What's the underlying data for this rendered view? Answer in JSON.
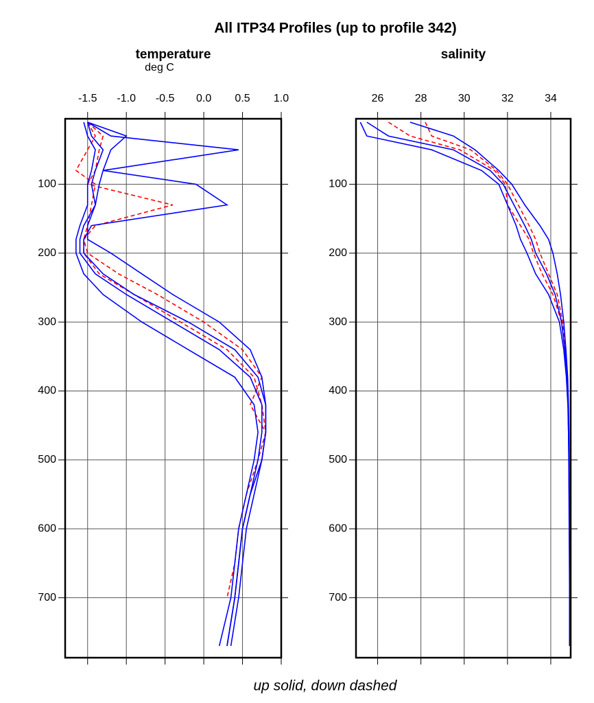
{
  "title": "All ITP34 Profiles (up to profile 342)",
  "footer": "up solid, down dashed",
  "chart_data": [
    {
      "type": "line",
      "title": "temperature",
      "subtitle": "deg C",
      "xlim": [
        -1.79,
        1.0
      ],
      "xticks": [
        -1.5,
        {
          "value": -1,
          "label": "-1.0"
        },
        -0.5,
        {
          "value": 0,
          "label": "0.0"
        },
        0.5,
        {
          "value": 1,
          "label": "1.0"
        }
      ],
      "ylim": [
        787,
        5
      ],
      "yticks": [
        100,
        200,
        300,
        400,
        500,
        600,
        700
      ],
      "grid": true,
      "y": [
        10,
        30,
        50,
        80,
        100,
        130,
        160,
        180,
        200,
        230,
        260,
        300,
        340,
        380,
        420,
        460,
        500,
        550,
        600,
        650,
        700,
        770
      ],
      "series": [
        {
          "color": "#ff0000",
          "dashed": true,
          "values": [
            -1.5,
            -1.4,
            -1.5,
            -1.65,
            -1.4,
            -1.45,
            -1.5,
            -1.55,
            -1.55,
            -1.35,
            -0.9,
            -0.3,
            0.3,
            0.65,
            0.75,
            0.8,
            0.7,
            0.55,
            0.45,
            0.4,
            0.3,
            null
          ]
        },
        {
          "color": "#ff0000",
          "dashed": true,
          "values": [
            -1.5,
            -1.3,
            -1.35,
            -1.4,
            -1.5,
            -0.4,
            -1.4,
            -1.55,
            -1.5,
            -1.1,
            -0.6,
            0.0,
            0.5,
            0.75,
            0.6,
            0.8,
            0.75,
            0.6,
            0.5,
            0.45,
            0.4,
            0.3
          ]
        },
        {
          "color": "#0000ff",
          "dashed": false,
          "values": [
            -1.5,
            -1.45,
            -1.3,
            -1.4,
            -1.45,
            -1.4,
            -1.55,
            -1.6,
            -1.6,
            -1.4,
            -1.0,
            -0.4,
            0.2,
            0.6,
            0.75,
            0.75,
            0.7,
            0.6,
            0.5,
            0.45,
            0.4,
            0.3
          ]
        },
        {
          "color": "#0000ff",
          "dashed": false,
          "values": [
            -1.5,
            -1.0,
            -1.2,
            -1.3,
            -1.35,
            -1.4,
            -1.5,
            -1.5,
            -1.2,
            -0.8,
            -0.4,
            0.2,
            0.6,
            0.75,
            0.8,
            0.8,
            0.75,
            0.65,
            0.55,
            0.5,
            0.45,
            0.35
          ]
        },
        {
          "color": "#0000ff",
          "dashed": false,
          "values": [
            -1.55,
            -1.5,
            -1.4,
            -1.45,
            -1.5,
            -1.5,
            -1.6,
            -1.65,
            -1.65,
            -1.55,
            -1.3,
            -0.8,
            -0.2,
            0.4,
            0.65,
            0.7,
            0.65,
            0.55,
            0.45,
            0.4,
            0.35,
            0.2
          ]
        },
        {
          "color": "#0000ff",
          "dashed": false,
          "values": [
            -1.5,
            -1.2,
            0.45,
            -1.3,
            -0.1,
            0.3,
            -1.45,
            -1.55,
            -1.55,
            -1.3,
            -0.9,
            -0.2,
            0.4,
            0.7,
            0.8,
            0.8,
            0.75,
            0.6,
            0.5,
            0.45,
            0.4,
            0.3
          ]
        }
      ]
    },
    {
      "type": "line",
      "title": "salinity",
      "xlim": [
        25,
        34.92
      ],
      "xticks": [
        26,
        28,
        30,
        32,
        34
      ],
      "ylim": [
        787,
        5
      ],
      "yticks": [
        100,
        200,
        300,
        400,
        500,
        600,
        700
      ],
      "grid": true,
      "y": [
        10,
        30,
        50,
        80,
        100,
        130,
        160,
        180,
        200,
        230,
        260,
        300,
        340,
        380,
        420,
        460,
        500,
        550,
        600,
        650,
        700,
        770
      ],
      "series": [
        {
          "color": "#ff0000",
          "dashed": true,
          "values": [
            26.5,
            27.5,
            29.8,
            31.4,
            31.9,
            32.0,
            32.6,
            33.0,
            33.2,
            33.6,
            34.1,
            34.5,
            34.65,
            34.75,
            34.8,
            34.82,
            34.84,
            34.85,
            34.86,
            34.87,
            34.87,
            34.87
          ]
        },
        {
          "color": "#ff0000",
          "dashed": true,
          "values": [
            28.2,
            28.5,
            30.3,
            31.5,
            32.0,
            32.5,
            33.0,
            33.3,
            33.5,
            33.9,
            34.3,
            34.55,
            34.68,
            34.76,
            34.81,
            34.83,
            34.84,
            34.85,
            34.86,
            34.87,
            34.87,
            34.87
          ]
        },
        {
          "color": "#0000ff",
          "dashed": false,
          "values": [
            25.5,
            26.5,
            29.5,
            31.2,
            31.8,
            32.3,
            32.8,
            33.1,
            33.3,
            33.8,
            34.2,
            34.5,
            34.65,
            34.75,
            34.8,
            34.82,
            34.84,
            34.85,
            34.86,
            34.87,
            34.87,
            34.87
          ]
        },
        {
          "color": "#0000ff",
          "dashed": false,
          "values": [
            27.5,
            29.5,
            30.5,
            31.6,
            32.2,
            32.8,
            33.5,
            33.9,
            34.1,
            34.3,
            34.45,
            34.6,
            34.7,
            34.78,
            34.82,
            34.84,
            34.85,
            34.86,
            34.86,
            34.87,
            34.87,
            34.87
          ]
        },
        {
          "color": "#0000ff",
          "dashed": false,
          "values": [
            25.2,
            25.5,
            28.5,
            30.8,
            31.6,
            32.0,
            32.4,
            32.6,
            32.9,
            33.3,
            33.9,
            34.4,
            34.6,
            34.72,
            34.79,
            34.82,
            34.83,
            34.84,
            34.85,
            34.86,
            34.87,
            34.87
          ]
        }
      ]
    }
  ]
}
